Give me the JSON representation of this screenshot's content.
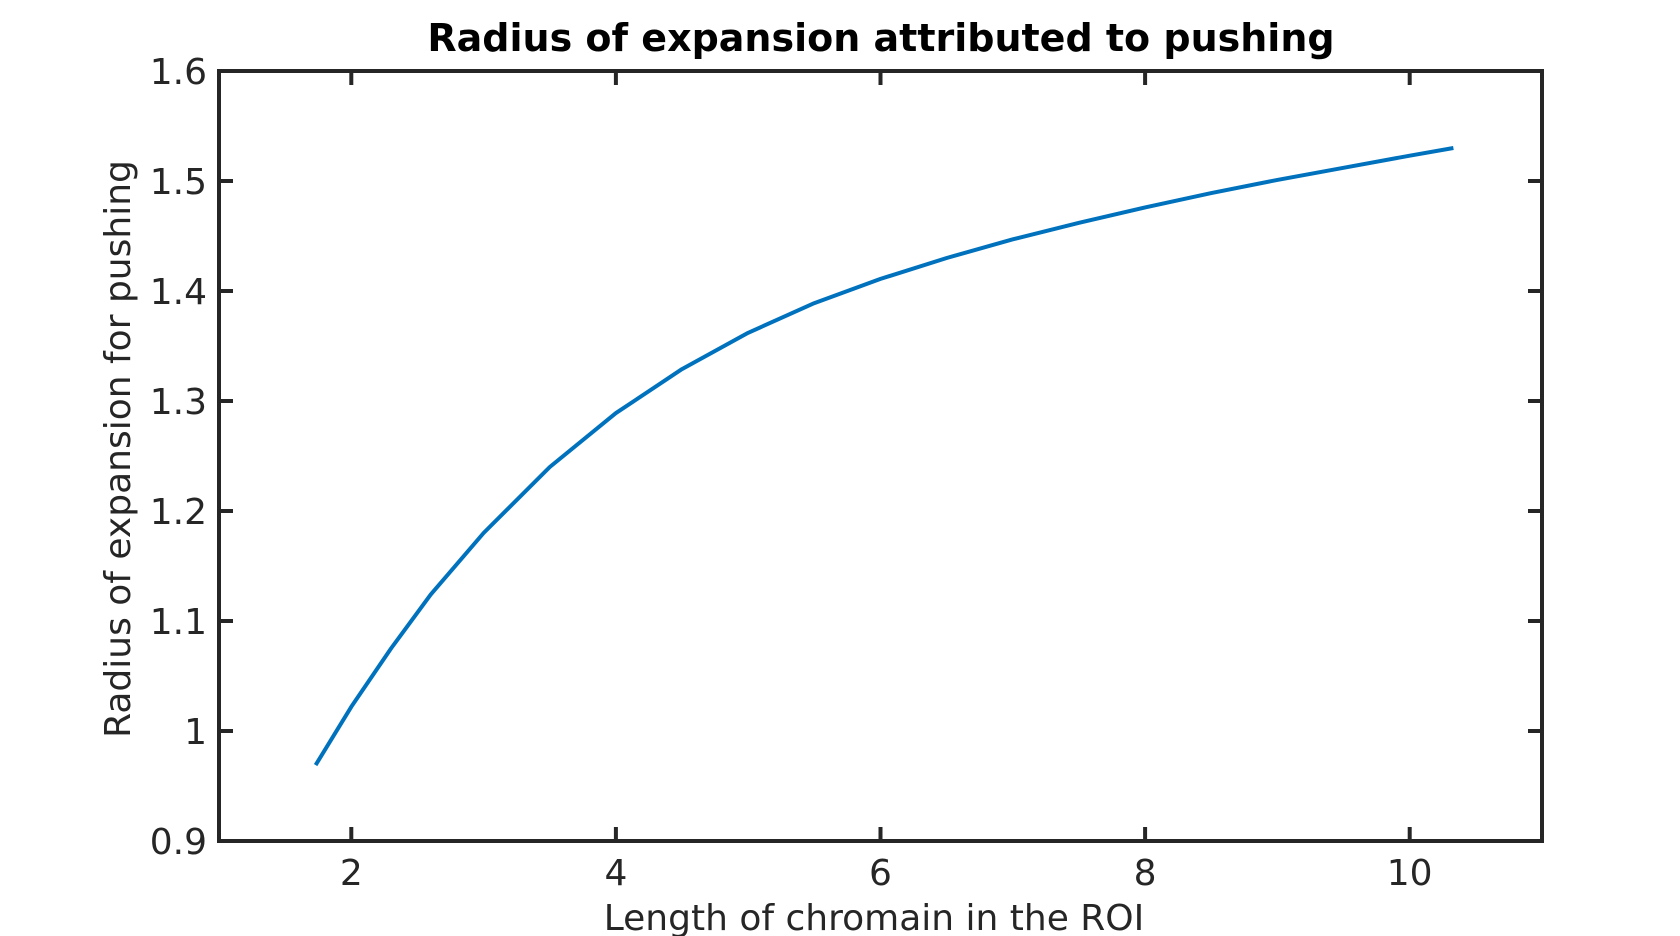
{
  "chart_data": {
    "type": "line",
    "title": "Radius of expansion attributed to pushing",
    "xlabel": "Length of chromain in the ROI",
    "ylabel": "Radius of expansion for pushing",
    "xlim": [
      1,
      11
    ],
    "ylim": [
      0.9,
      1.6
    ],
    "xticks": [
      2,
      4,
      6,
      8,
      10
    ],
    "xtick_labels": [
      "2",
      "4",
      "6",
      "8",
      "10"
    ],
    "yticks": [
      0.9,
      1.0,
      1.1,
      1.2,
      1.3,
      1.4,
      1.5,
      1.6
    ],
    "ytick_labels": [
      "0.9",
      "1",
      "1.1",
      "1.2",
      "1.3",
      "1.4",
      "1.5",
      "1.6"
    ],
    "grid": false,
    "line_color": "#0072bd",
    "axis_color": "#262626",
    "series": [
      {
        "x": [
          1.73,
          2.0,
          2.3,
          2.6,
          3.0,
          3.5,
          4.0,
          4.5,
          5.0,
          5.5,
          6.0,
          6.5,
          7.0,
          7.5,
          8.0,
          8.5,
          9.0,
          9.5,
          10.0,
          10.33
        ],
        "y": [
          0.969,
          1.022,
          1.075,
          1.124,
          1.18,
          1.24,
          1.289,
          1.329,
          1.362,
          1.389,
          1.411,
          1.43,
          1.447,
          1.462,
          1.476,
          1.489,
          1.501,
          1.512,
          1.523,
          1.53
        ]
      }
    ]
  }
}
